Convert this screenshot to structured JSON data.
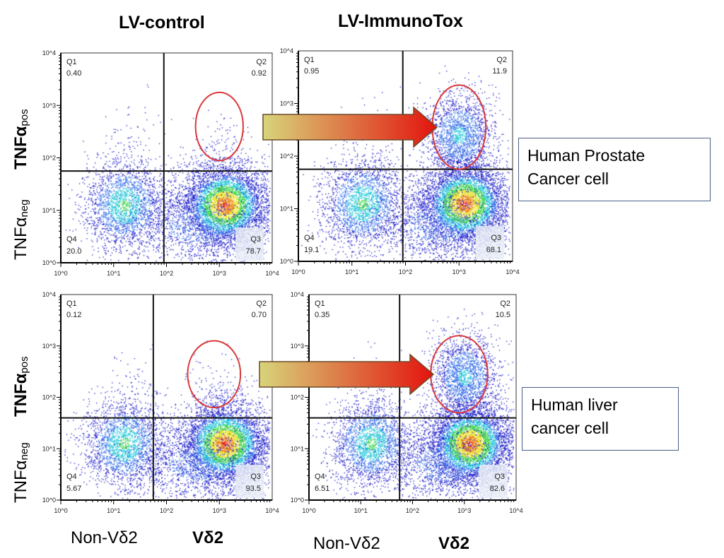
{
  "column_titles": [
    "LV-control",
    "LV-ImmunoTox"
  ],
  "y_labels": {
    "pos_main": "TNFα",
    "pos_sub": "pos",
    "neg_main": "TNFα",
    "neg_sub": "neg"
  },
  "x_labels": {
    "non": "Non-Vδ2",
    "vd2": "Vδ2"
  },
  "cell_labels": [
    "Human Prostate Cancer cell",
    "Human liver cancer cell"
  ],
  "colors": {
    "gate": "#d9383a",
    "arrow_start": "#d8d47a",
    "arrow_end": "#e3140e",
    "low_density": "#1a1adb",
    "high_density": "#e8261a"
  },
  "chart_data": [
    {
      "type": "scatter",
      "subtype": "flow-cytometry-density-dot-plot",
      "row": "Human Prostate Cancer cell",
      "column": "LV-control",
      "x_scale": "log",
      "y_scale": "log",
      "xlim": [
        1,
        10000
      ],
      "ylim": [
        1,
        10000
      ],
      "x_ticks": [
        "10^0",
        "10^1",
        "10^2",
        "10^3",
        "10^4"
      ],
      "y_ticks": [
        "10^0",
        "10^1",
        "10^2",
        "10^3",
        "10^4"
      ],
      "quadrants": [
        {
          "name": "Q1",
          "value": "0.40"
        },
        {
          "name": "Q2",
          "value": "0.92"
        },
        {
          "name": "Q3",
          "value": "78.7"
        },
        {
          "name": "Q4",
          "value": "20.0"
        }
      ]
    },
    {
      "type": "scatter",
      "subtype": "flow-cytometry-density-dot-plot",
      "row": "Human Prostate Cancer cell",
      "column": "LV-ImmunoTox",
      "x_scale": "log",
      "y_scale": "log",
      "xlim": [
        1,
        10000
      ],
      "ylim": [
        1,
        10000
      ],
      "x_ticks": [
        "10^0",
        "10^1",
        "10^2",
        "10^3",
        "10^4"
      ],
      "y_ticks": [
        "10^0",
        "10^1",
        "10^2",
        "10^3",
        "10^4"
      ],
      "quadrants": [
        {
          "name": "Q1",
          "value": "0.95"
        },
        {
          "name": "Q2",
          "value": "11.9"
        },
        {
          "name": "Q3",
          "value": "68.1"
        },
        {
          "name": "Q4",
          "value": "19.1"
        }
      ]
    },
    {
      "type": "scatter",
      "subtype": "flow-cytometry-density-dot-plot",
      "row": "Human liver cancer cell",
      "column": "LV-control",
      "x_scale": "log",
      "y_scale": "log",
      "xlim": [
        1,
        10000
      ],
      "ylim": [
        1,
        10000
      ],
      "x_ticks": [
        "10^0",
        "10^1",
        "10^2",
        "10^3",
        "10^4"
      ],
      "y_ticks": [
        "10^0",
        "10^1",
        "10^2",
        "10^3",
        "10^4"
      ],
      "quadrants": [
        {
          "name": "Q1",
          "value": "0.12"
        },
        {
          "name": "Q2",
          "value": "0.70"
        },
        {
          "name": "Q3",
          "value": "93.5"
        },
        {
          "name": "Q4",
          "value": "5.67"
        }
      ]
    },
    {
      "type": "scatter",
      "subtype": "flow-cytometry-density-dot-plot",
      "row": "Human liver cancer cell",
      "column": "LV-ImmunoTox",
      "x_scale": "log",
      "y_scale": "log",
      "xlim": [
        1,
        10000
      ],
      "ylim": [
        1,
        10000
      ],
      "x_ticks": [
        "10^0",
        "10^1",
        "10^2",
        "10^3",
        "10^4"
      ],
      "y_ticks": [
        "10^0",
        "10^1",
        "10^2",
        "10^3",
        "10^4"
      ],
      "quadrants": [
        {
          "name": "Q1",
          "value": "0.35"
        },
        {
          "name": "Q2",
          "value": "10.5"
        },
        {
          "name": "Q3",
          "value": "82.6"
        },
        {
          "name": "Q4",
          "value": "6.51"
        }
      ]
    }
  ]
}
